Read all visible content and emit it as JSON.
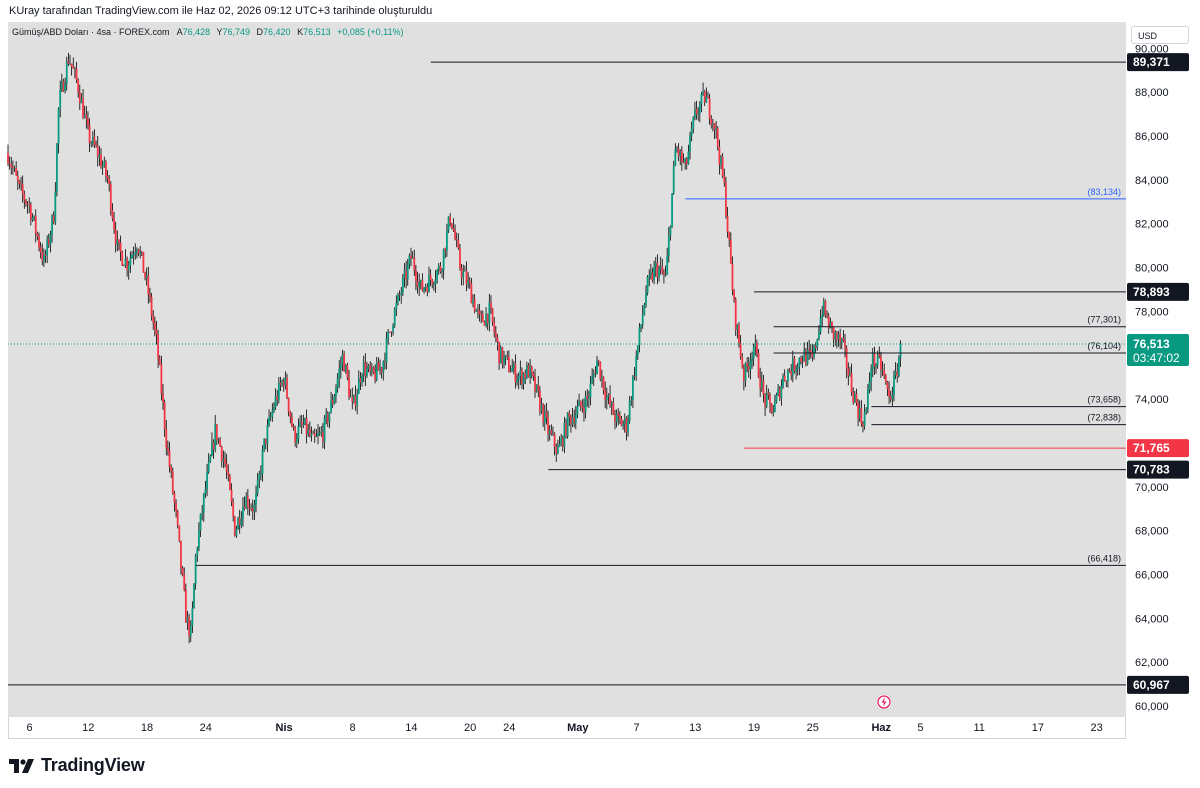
{
  "header": {
    "caption": "KUray tarafından TradingView.com ile Haz 02, 2026 09:12 UTC+3 tarihinde oluşturuldu"
  },
  "legend": {
    "symbol": "Gümüş/ABD Doları · 4sa · FOREX.com",
    "o_label": "A",
    "o_value": "76,428",
    "h_label": "Y",
    "h_value": "76,749",
    "l_label": "D",
    "l_value": "76,420",
    "c_label": "K",
    "c_value": "76,513",
    "change": "+0,085 (+0,11%)"
  },
  "currency_button": "USD",
  "branding": {
    "name": "TradingView"
  },
  "colors": {
    "up": "#089981",
    "down": "#f23645",
    "grid_bg": "#e0e0e0",
    "level_line": "#131722",
    "blue_line": "#2962ff",
    "red_line": "#f23645",
    "last_price": "#089981"
  },
  "icons": {
    "alert": "bolt-icon",
    "logo": "tradingview-logo-icon"
  },
  "chart_data": {
    "type": "candlestick",
    "y_axis": {
      "range": [
        59.5,
        91.2
      ],
      "ticks": [
        60,
        62,
        64,
        66,
        68,
        70,
        72,
        74,
        76,
        78,
        80,
        82,
        84,
        86,
        88,
        90
      ],
      "tick_labels": [
        "60,000",
        "62,000",
        "64,000",
        "66,000",
        "68,000",
        "70,000",
        "72,000",
        "74,000",
        "76,000",
        "78,000",
        "80,000",
        "82,000",
        "84,000",
        "86,000",
        "88,000",
        "90,000"
      ]
    },
    "x_axis": {
      "ticks": [
        {
          "label": "6",
          "day": 6
        },
        {
          "label": "12",
          "day": 12
        },
        {
          "label": "18",
          "day": 18
        },
        {
          "label": "24",
          "day": 24
        },
        {
          "label": "Nis",
          "day": 32,
          "bold": true
        },
        {
          "label": "8",
          "day": 39
        },
        {
          "label": "14",
          "day": 45
        },
        {
          "label": "20",
          "day": 51
        },
        {
          "label": "24",
          "day": 55
        },
        {
          "label": "May",
          "day": 62,
          "bold": true
        },
        {
          "label": "7",
          "day": 68
        },
        {
          "label": "13",
          "day": 74
        },
        {
          "label": "19",
          "day": 80
        },
        {
          "label": "25",
          "day": 86
        },
        {
          "label": "Haz",
          "day": 93,
          "bold": true
        },
        {
          "label": "5",
          "day": 97
        },
        {
          "label": "11",
          "day": 103
        },
        {
          "label": "17",
          "day": 109
        },
        {
          "label": "23",
          "day": 115
        }
      ],
      "range": [
        3.8,
        118
      ]
    },
    "path": [
      [
        3.8,
        85.2
      ],
      [
        5,
        83.5
      ],
      [
        6,
        82.8
      ],
      [
        7.5,
        80.2
      ],
      [
        8.5,
        82.5
      ],
      [
        9,
        87.5
      ],
      [
        10,
        89.6
      ],
      [
        11,
        88.2
      ],
      [
        12,
        86.0
      ],
      [
        13,
        85.2
      ],
      [
        14,
        84.0
      ],
      [
        15,
        80.8
      ],
      [
        16,
        80.2
      ],
      [
        17,
        81.2
      ],
      [
        18,
        79.2
      ],
      [
        19,
        76.5
      ],
      [
        20,
        72.0
      ],
      [
        21,
        68.5
      ],
      [
        22,
        64.0
      ],
      [
        22.5,
        63.2
      ],
      [
        23,
        67.0
      ],
      [
        24,
        70.0
      ],
      [
        25,
        72.6
      ],
      [
        26,
        71.0
      ],
      [
        27,
        68.0
      ],
      [
        28,
        69.5
      ],
      [
        29,
        69.0
      ],
      [
        30,
        72.0
      ],
      [
        31,
        73.8
      ],
      [
        32,
        75.0
      ],
      [
        33,
        72.3
      ],
      [
        34,
        72.8
      ],
      [
        35,
        72.0
      ],
      [
        36,
        72.5
      ],
      [
        37,
        74.0
      ],
      [
        38,
        76.0
      ],
      [
        39,
        73.5
      ],
      [
        40,
        75.5
      ],
      [
        41,
        75.0
      ],
      [
        42,
        75.5
      ],
      [
        43,
        77.5
      ],
      [
        44,
        79.0
      ],
      [
        45,
        80.5
      ],
      [
        46,
        79.0
      ],
      [
        47,
        79.5
      ],
      [
        48,
        80.0
      ],
      [
        49,
        82.4
      ],
      [
        50,
        80.0
      ],
      [
        51,
        79.0
      ],
      [
        52,
        77.5
      ],
      [
        53,
        78.0
      ],
      [
        54,
        76.0
      ],
      [
        55,
        75.5
      ],
      [
        56,
        75.0
      ],
      [
        57,
        75.3
      ],
      [
        58,
        74.0
      ],
      [
        59,
        72.5
      ],
      [
        60,
        71.6
      ],
      [
        61,
        73.0
      ],
      [
        62,
        73.5
      ],
      [
        63,
        74.0
      ],
      [
        64,
        75.8
      ],
      [
        65,
        74.0
      ],
      [
        66,
        73.0
      ],
      [
        67,
        72.8
      ],
      [
        68,
        76.0
      ],
      [
        69,
        79.0
      ],
      [
        70,
        80.0
      ],
      [
        71,
        79.5
      ],
      [
        72,
        85.5
      ],
      [
        73,
        84.5
      ],
      [
        74,
        87.0
      ],
      [
        75,
        87.8
      ],
      [
        76,
        86.5
      ],
      [
        77,
        83.5
      ],
      [
        78,
        78.0
      ],
      [
        79,
        75.0
      ],
      [
        80,
        76.5
      ],
      [
        81,
        74.0
      ],
      [
        82,
        73.5
      ],
      [
        83,
        75.0
      ],
      [
        84,
        75.5
      ],
      [
        85,
        76.0
      ],
      [
        86,
        75.8
      ],
      [
        87,
        78.2
      ],
      [
        88,
        77.0
      ],
      [
        89,
        76.5
      ],
      [
        90,
        74.5
      ],
      [
        91,
        73.0
      ],
      [
        91.5,
        73.5
      ],
      [
        92,
        75.8
      ],
      [
        93,
        75.5
      ],
      [
        93.8,
        74.0
      ],
      [
        94.5,
        75.0
      ],
      [
        95,
        76.51
      ]
    ],
    "levels": [
      {
        "price": 89.371,
        "label": "89,371",
        "kind": "tag",
        "x_start": 47
      },
      {
        "price": 83.134,
        "label": "(83,134)",
        "kind": "blue",
        "x_start": 73
      },
      {
        "price": 78.893,
        "label": "78,893",
        "kind": "tag",
        "x_start": 80
      },
      {
        "price": 77.301,
        "label": "(77,301)",
        "kind": "thin",
        "x_start": 82
      },
      {
        "price": 76.104,
        "label": "(76,104)",
        "kind": "thin",
        "x_start": 82
      },
      {
        "price": 73.658,
        "label": "(73,658)",
        "kind": "thin",
        "x_start": 92
      },
      {
        "price": 72.838,
        "label": "(72,838)",
        "kind": "thin",
        "x_start": 92
      },
      {
        "price": 71.765,
        "label": "71,765",
        "kind": "red",
        "x_start": 79
      },
      {
        "price": 70.783,
        "label": "70,783",
        "kind": "tag",
        "x_start": 59
      },
      {
        "price": 66.418,
        "label": "(66,418)",
        "kind": "thin",
        "x_start": 23
      },
      {
        "price": 60.967,
        "label": "60,967",
        "kind": "tag",
        "x_start": 3.8
      }
    ],
    "last_price": {
      "value": "76,513",
      "countdown": "03:47:02",
      "price": 76.513
    }
  }
}
